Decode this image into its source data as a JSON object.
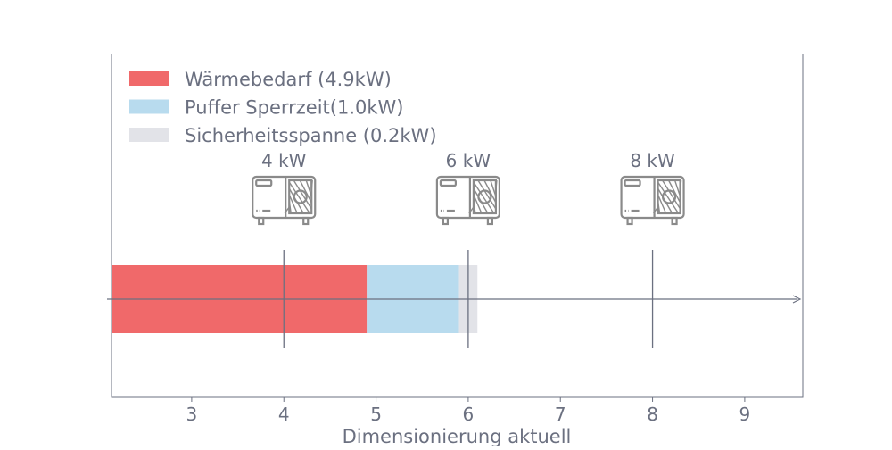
{
  "chart_data": {
    "type": "bar",
    "orientation": "horizontal",
    "stacked": true,
    "title": "",
    "xlabel": "Dimensionierung aktuell",
    "ylabel": "",
    "xlim": [
      2.13,
      9.63
    ],
    "xticks": [
      3,
      4,
      5,
      6,
      7,
      8,
      9
    ],
    "grid": false,
    "legend_position": "top-left",
    "series": [
      {
        "name": "Wärmebedarf (4.9kW)",
        "value": 4.9,
        "color": "#f0696a"
      },
      {
        "name": "Puffer Sperrzeit(1.0kW)",
        "value": 1.0,
        "color": "#b8dbee"
      },
      {
        "name": "Sicherheitsspanne (0.2kW)",
        "value": 0.2,
        "color": "#e2e3e8"
      }
    ],
    "markers": [
      {
        "value": 4,
        "label": "4 kW",
        "icon": "heat-pump-icon"
      },
      {
        "value": 6,
        "label": "6 kW",
        "icon": "heat-pump-icon"
      },
      {
        "value": 8,
        "label": "8 kW",
        "icon": "heat-pump-icon"
      }
    ],
    "colors": {
      "axis": "#6b7080",
      "icon": "#8a8a8a"
    }
  }
}
